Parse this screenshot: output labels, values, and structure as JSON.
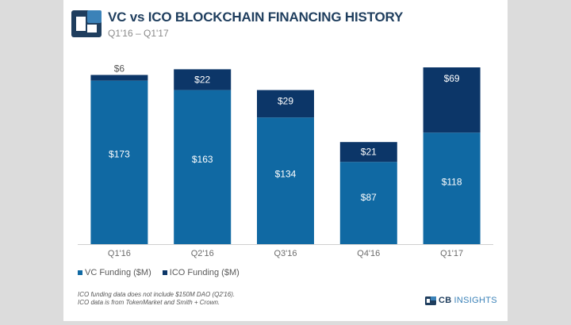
{
  "header": {
    "title": "VC vs ICO BLOCKCHAIN FINANCING HISTORY",
    "subtitle": "Q1'16 – Q1'17"
  },
  "colors": {
    "vc": "#1069a3",
    "ico": "#0c3668",
    "label": "#ffffff",
    "axis_text": "#6b6b6b"
  },
  "chart_data": {
    "type": "bar",
    "stacked": true,
    "categories": [
      "Q1'16",
      "Q2'16",
      "Q3'16",
      "Q4'16",
      "Q1'17"
    ],
    "series": [
      {
        "name": "VC Funding ($M)",
        "values": [
          173,
          163,
          134,
          87,
          118
        ],
        "labels": [
          "$173",
          "$163",
          "$134",
          "$87",
          "$118"
        ]
      },
      {
        "name": "ICO Funding ($M)",
        "values": [
          6,
          22,
          29,
          21,
          69
        ],
        "labels": [
          "$6",
          "$22",
          "$29",
          "$21",
          "$69"
        ]
      }
    ],
    "ylim": [
      0,
      187
    ],
    "grid": false
  },
  "legend": {
    "vc_label": "VC Funding ($M)",
    "ico_label": "ICO Funding ($M)"
  },
  "footnote": {
    "line1": "ICO funding data does not include $150M DAO (Q2'16).",
    "line2": "ICO data is from TokenMarket and Smith + Crown."
  },
  "brand": {
    "cb": "CB",
    "insights": "INSIGHTS"
  }
}
